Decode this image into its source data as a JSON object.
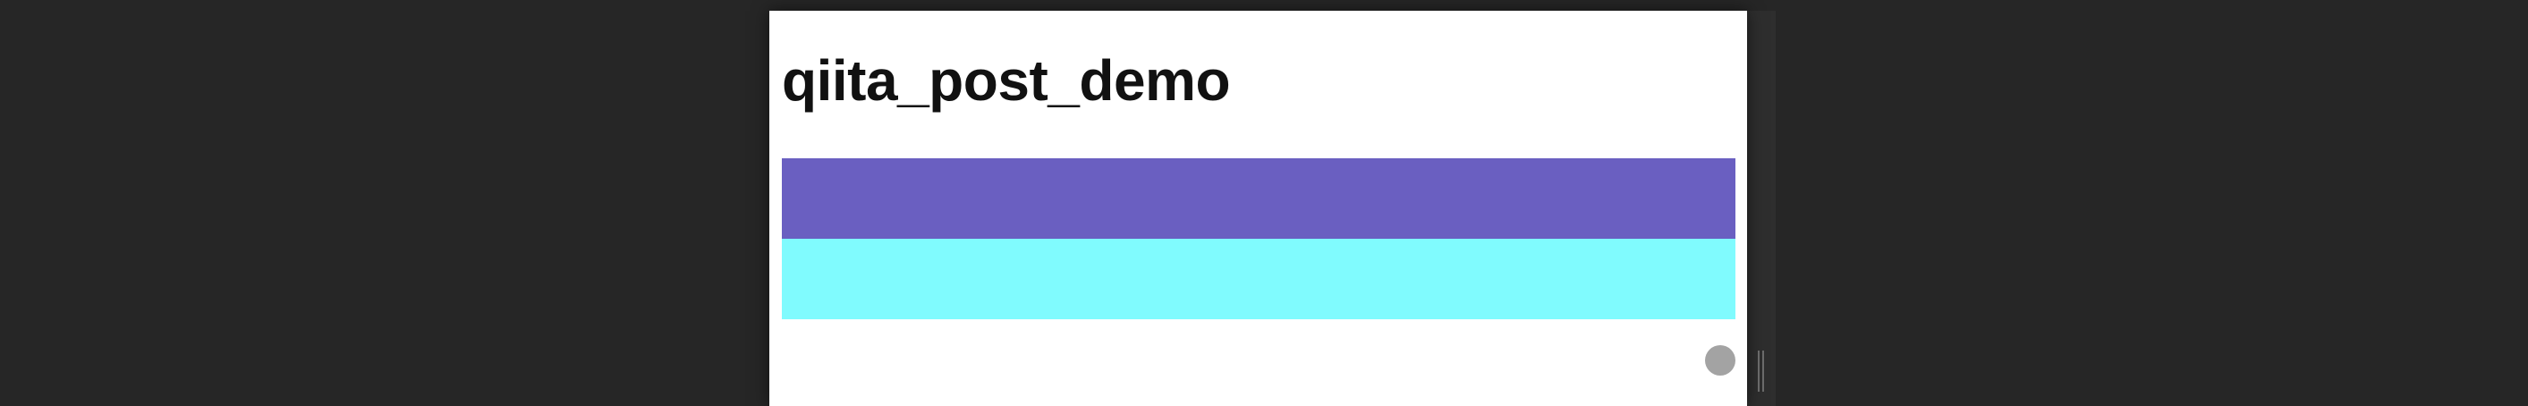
{
  "page": {
    "title": "qiita_post_demo"
  },
  "colors": {
    "background": "#262626",
    "panel": "#ffffff",
    "bar_top": "#6a5fc1",
    "bar_bottom": "#80fbfe",
    "button": "#a3a3a3"
  },
  "icons": {
    "round_button": "circle",
    "resize_handle": "vertical-grip"
  }
}
